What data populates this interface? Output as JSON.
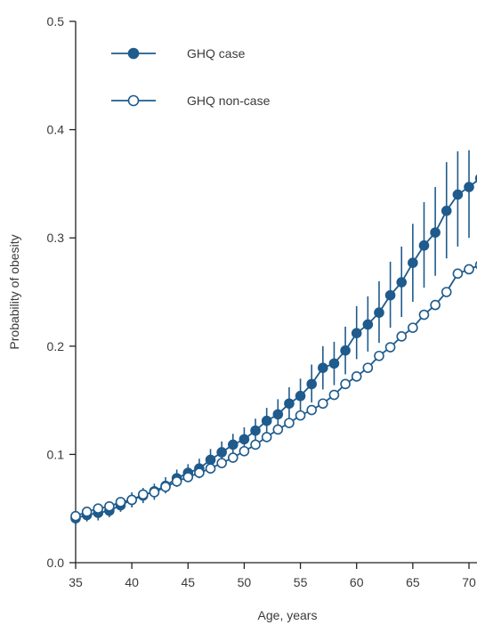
{
  "chart_data": {
    "type": "line",
    "title": "",
    "xlabel": "Age, years",
    "ylabel": "Probability of obesity",
    "xlim": [
      35,
      71
    ],
    "ylim": [
      0,
      0.5
    ],
    "xticks": [
      35,
      40,
      45,
      50,
      55,
      60,
      65,
      70
    ],
    "xtick_labels": [
      "35",
      "40",
      "45",
      "50",
      "55",
      "60",
      "65",
      "70"
    ],
    "yticks": [
      0,
      0.1,
      0.2,
      0.3,
      0.4,
      0.5
    ],
    "ytick_labels": [
      "0.0",
      "0.1",
      "0.2",
      "0.3",
      "0.4",
      "0.5"
    ],
    "grid": false,
    "legend_position": "top-left",
    "color": "#1f5b8c",
    "series": [
      {
        "name": "GHQ case",
        "marker": "filled-circle",
        "x": [
          35,
          36,
          37,
          38,
          39,
          40,
          41,
          42,
          43,
          44,
          45,
          46,
          47,
          48,
          49,
          50,
          51,
          52,
          53,
          54,
          55,
          56,
          57,
          58,
          59,
          60,
          61,
          62,
          63,
          64,
          65,
          66,
          67,
          68,
          69,
          70,
          71
        ],
        "y": [
          0.041,
          0.044,
          0.046,
          0.048,
          0.053,
          0.058,
          0.062,
          0.066,
          0.071,
          0.078,
          0.083,
          0.087,
          0.095,
          0.102,
          0.109,
          0.114,
          0.122,
          0.131,
          0.137,
          0.147,
          0.154,
          0.165,
          0.18,
          0.184,
          0.196,
          0.212,
          0.22,
          0.231,
          0.247,
          0.259,
          0.277,
          0.293,
          0.305,
          0.325,
          0.34,
          0.347,
          0.355
        ],
        "y_low": [
          0.035,
          0.038,
          0.039,
          0.042,
          0.047,
          0.051,
          0.055,
          0.058,
          0.064,
          0.07,
          0.075,
          0.078,
          0.085,
          0.092,
          0.098,
          0.103,
          0.11,
          0.118,
          0.123,
          0.132,
          0.138,
          0.148,
          0.16,
          0.164,
          0.174,
          0.188,
          0.195,
          0.203,
          0.217,
          0.227,
          0.241,
          0.254,
          0.265,
          0.281,
          0.292,
          0.3,
          0.305
        ],
        "y_high": [
          0.048,
          0.05,
          0.053,
          0.055,
          0.06,
          0.065,
          0.069,
          0.073,
          0.079,
          0.086,
          0.091,
          0.096,
          0.105,
          0.112,
          0.119,
          0.125,
          0.133,
          0.143,
          0.151,
          0.162,
          0.17,
          0.183,
          0.2,
          0.204,
          0.218,
          0.237,
          0.246,
          0.26,
          0.278,
          0.292,
          0.313,
          0.333,
          0.347,
          0.37,
          0.38,
          0.381,
          0.382
        ]
      },
      {
        "name": "GHQ non-case",
        "marker": "open-circle",
        "x": [
          35,
          36,
          37,
          38,
          39,
          40,
          41,
          42,
          43,
          44,
          45,
          46,
          47,
          48,
          49,
          50,
          51,
          52,
          53,
          54,
          55,
          56,
          57,
          58,
          59,
          60,
          61,
          62,
          63,
          64,
          65,
          66,
          67,
          68,
          69,
          70,
          71
        ],
        "y": [
          0.043,
          0.047,
          0.05,
          0.052,
          0.056,
          0.058,
          0.063,
          0.065,
          0.07,
          0.075,
          0.079,
          0.083,
          0.087,
          0.092,
          0.097,
          0.103,
          0.109,
          0.116,
          0.123,
          0.129,
          0.136,
          0.141,
          0.147,
          0.155,
          0.165,
          0.172,
          0.18,
          0.191,
          0.199,
          0.209,
          0.217,
          0.229,
          0.238,
          0.25,
          0.267,
          0.271,
          0.275
        ]
      }
    ]
  }
}
